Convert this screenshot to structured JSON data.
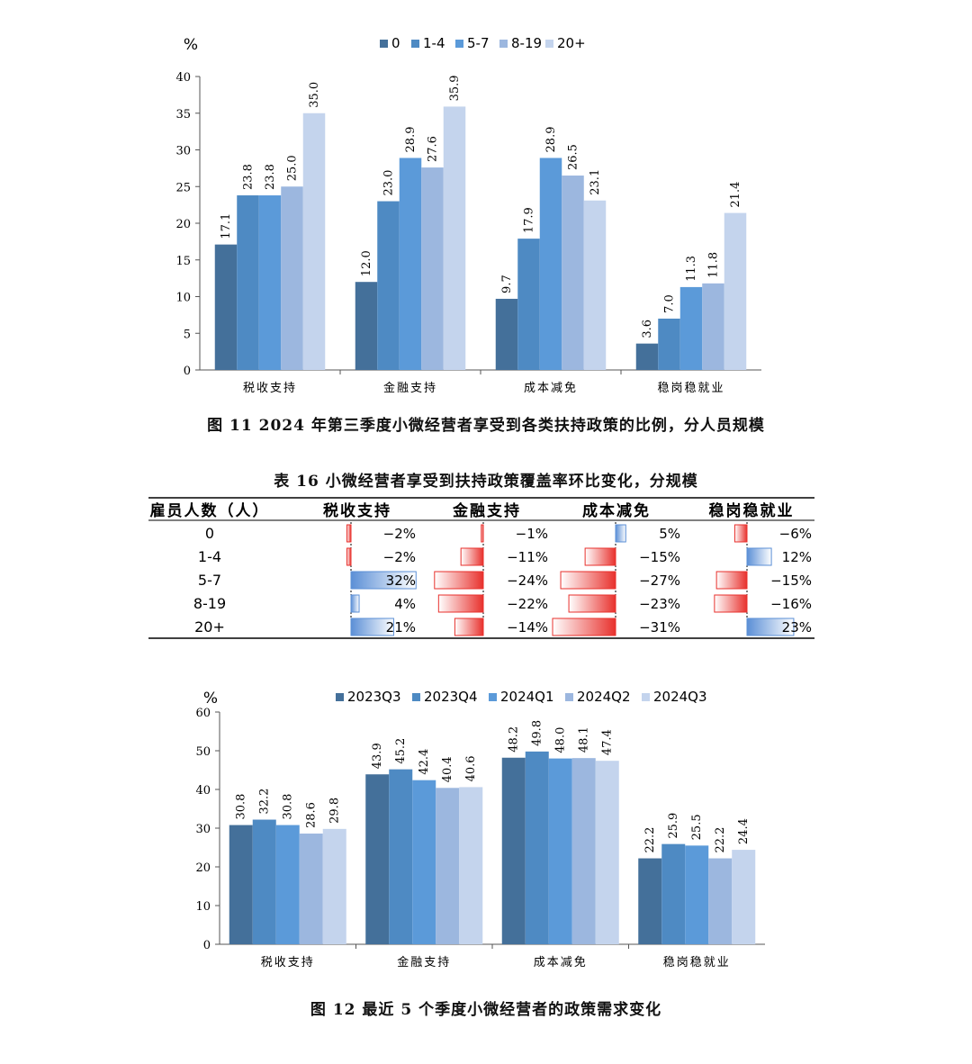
{
  "figure11": {
    "caption": "图 11 2024 年第三季度小微经营者享受到各类扶持政策的比例，分人员规模",
    "chart_data": {
      "type": "bar",
      "unit_label": "%",
      "ylim": [
        0,
        40
      ],
      "yticks": [
        0,
        5,
        10,
        15,
        20,
        25,
        30,
        35,
        40
      ],
      "categories": [
        "税收支持",
        "金融支持",
        "成本减免",
        "稳岗稳就业"
      ],
      "series": [
        {
          "name": "0",
          "color": "#44709a",
          "values": [
            17.1,
            12.0,
            9.7,
            3.6
          ]
        },
        {
          "name": "1-4",
          "color": "#4e8ac3",
          "values": [
            23.8,
            23.0,
            17.9,
            7.0
          ]
        },
        {
          "name": "5-7",
          "color": "#5b9ad9",
          "values": [
            23.8,
            28.9,
            28.9,
            11.3
          ]
        },
        {
          "name": "8-19",
          "color": "#9cb7df",
          "values": [
            25.0,
            27.6,
            26.5,
            11.8
          ]
        },
        {
          "name": "20+",
          "color": "#c4d4ed",
          "values": [
            35.0,
            35.9,
            23.1,
            21.4
          ]
        }
      ],
      "legend_position": "top"
    }
  },
  "table16": {
    "caption": "表 16 小微经营者享受到扶持政策覆盖率环比变化，分规模",
    "headers": [
      "雇员人数（人）",
      "税收支持",
      "金融支持",
      "成本减免",
      "稳岗稳就业"
    ],
    "rows": [
      {
        "label": "0",
        "values": [
          -2,
          -1,
          5,
          -6
        ]
      },
      {
        "label": "1-4",
        "values": [
          -2,
          -11,
          -15,
          12
        ]
      },
      {
        "label": "5-7",
        "values": [
          32,
          -24,
          -27,
          -15
        ]
      },
      {
        "label": "8-19",
        "values": [
          4,
          -22,
          -23,
          -16
        ]
      },
      {
        "label": "20+",
        "values": [
          21,
          -14,
          -31,
          23
        ]
      }
    ],
    "value_suffix": "%",
    "colors": {
      "positive": "#5b8fd6",
      "negative": "#e8312d"
    }
  },
  "figure12": {
    "caption": "图 12 最近 5 个季度小微经营者的政策需求变化",
    "chart_data": {
      "type": "bar",
      "unit_label": "%",
      "ylim": [
        0,
        60
      ],
      "yticks": [
        0,
        10,
        20,
        30,
        40,
        50,
        60
      ],
      "categories": [
        "税收支持",
        "金融支持",
        "成本减免",
        "稳岗稳就业"
      ],
      "series": [
        {
          "name": "2023Q3",
          "color": "#44709a",
          "values": [
            30.8,
            43.9,
            48.2,
            22.2
          ]
        },
        {
          "name": "2023Q4",
          "color": "#4e8ac3",
          "values": [
            32.2,
            45.2,
            49.8,
            25.9
          ]
        },
        {
          "name": "2024Q1",
          "color": "#5b9ad9",
          "values": [
            30.8,
            42.4,
            48.0,
            25.5
          ]
        },
        {
          "name": "2024Q2",
          "color": "#9cb7df",
          "values": [
            28.6,
            40.4,
            48.1,
            22.2
          ]
        },
        {
          "name": "2024Q3",
          "color": "#c4d4ed",
          "values": [
            29.8,
            40.6,
            47.4,
            24.4
          ]
        }
      ],
      "legend_position": "top"
    }
  }
}
